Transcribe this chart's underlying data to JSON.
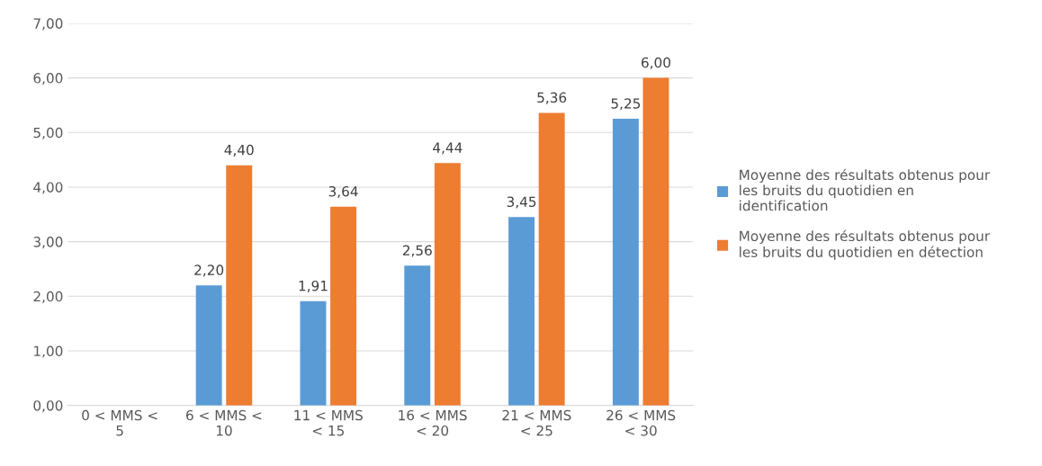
{
  "chart_data": {
    "type": "bar",
    "categories": [
      "0 < MMS <\n5",
      "6 < MMS <\n10",
      "11 < MMS\n< 15",
      "16 < MMS\n< 20",
      "21 < MMS\n< 25",
      "26 < MMS\n< 30"
    ],
    "series": [
      {
        "name": "Moyenne des résultats obtenus pour\nles bruits du quotidien en\nidentification",
        "color": "#5b9bd5",
        "values": [
          null,
          2.2,
          1.91,
          2.56,
          3.45,
          5.25
        ],
        "value_labels": [
          null,
          "2,20",
          "1,91",
          "2,56",
          "3,45",
          "5,25"
        ]
      },
      {
        "name": "Moyenne des résultats obtenus pour\nles bruits du quotidien en détection",
        "color": "#ed7d31",
        "values": [
          null,
          4.4,
          3.64,
          4.44,
          5.36,
          6.0
        ],
        "value_labels": [
          null,
          "4,40",
          "3,64",
          "4,44",
          "5,36",
          "6,00"
        ]
      }
    ],
    "ylim": [
      0,
      7
    ],
    "yticks": [
      {
        "value": 0,
        "label": "0,00"
      },
      {
        "value": 1,
        "label": "1,00"
      },
      {
        "value": 2,
        "label": "2,00"
      },
      {
        "value": 3,
        "label": "3,00"
      },
      {
        "value": 4,
        "label": "4,00"
      },
      {
        "value": 5,
        "label": "5,00"
      },
      {
        "value": 6,
        "label": "6,00"
      },
      {
        "value": 7,
        "label": "7,00"
      }
    ],
    "grid": "y",
    "legend": "right"
  }
}
